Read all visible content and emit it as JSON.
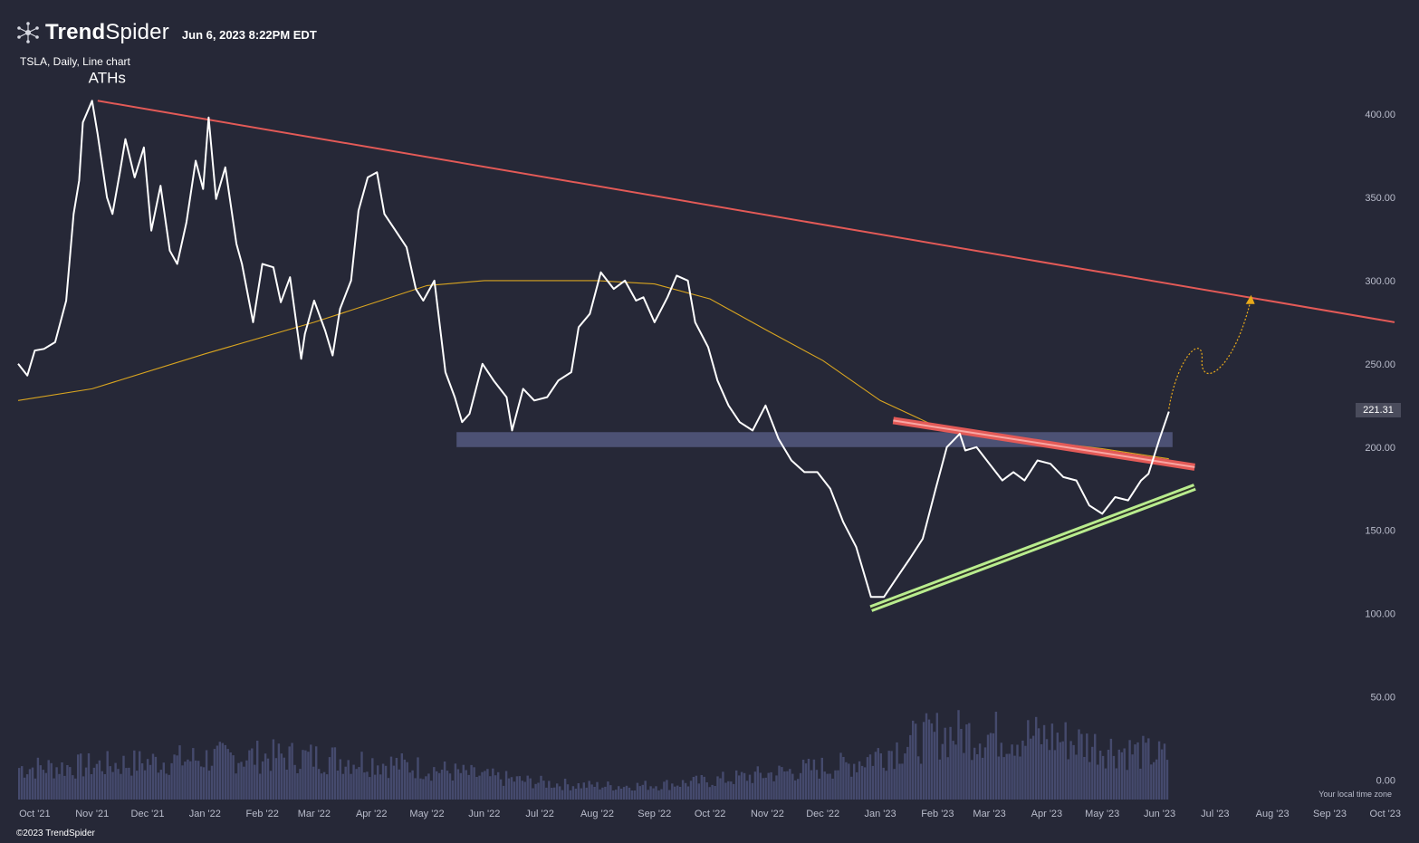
{
  "header": {
    "brand_bold": "Trend",
    "brand_regular": "Spider",
    "brand_icon": "spider-logo-icon",
    "timestamp": "Jun 6, 2023 8:22PM EDT",
    "subtitle": "TSLA, Daily, Line chart"
  },
  "footer": {
    "copyright": "©2023 TrendSpider",
    "timezone_note": "Your local time zone"
  },
  "colors": {
    "background": "#262837",
    "price_line": "#ffffff",
    "sma_line": "#d9a520",
    "resistance_line": "#e35a57",
    "support_line": "#b9ec8e",
    "zone": "#54587f",
    "volume": "#454a6d",
    "projection": "#e7a91a",
    "axis_text": "#b9bccb"
  },
  "chart_data": {
    "type": "line",
    "title": "TSLA, Daily, Line chart",
    "ylim": [
      -10,
      425
    ],
    "y_ticks": [
      "400.00",
      "350.00",
      "300.00",
      "250.00",
      "200.00",
      "150.00",
      "100.00",
      "50.00",
      "0.00"
    ],
    "x_ticks": [
      "Oct '21",
      "Nov '21",
      "Dec '21",
      "Jan '22",
      "Feb '22",
      "Mar '22",
      "Apr '22",
      "May '22",
      "Jun '22",
      "Jul '22",
      "Aug '22",
      "Sep '22",
      "Oct '22",
      "Nov '22",
      "Dec '22",
      "Jan '23",
      "Feb '23",
      "Mar '23",
      "Apr '23",
      "May '23",
      "Jun '23",
      "Jul '23",
      "Aug '23",
      "Sep '23",
      "Oct '23"
    ],
    "last_price": "221.31",
    "price": {
      "x": [
        "2021-09-22",
        "2021-09-27",
        "2021-10-01",
        "2021-10-06",
        "2021-10-12",
        "2021-10-18",
        "2021-10-22",
        "2021-10-25",
        "2021-10-27",
        "2021-11-01",
        "2021-11-04",
        "2021-11-09",
        "2021-11-12",
        "2021-11-16",
        "2021-11-19",
        "2021-11-24",
        "2021-11-29",
        "2021-12-03",
        "2021-12-08",
        "2021-12-13",
        "2021-12-17",
        "2021-12-22",
        "2021-12-27",
        "2021-12-31",
        "2022-01-03",
        "2022-01-07",
        "2022-01-12",
        "2022-01-18",
        "2022-01-21",
        "2022-01-27",
        "2022-02-01",
        "2022-02-07",
        "2022-02-11",
        "2022-02-16",
        "2022-02-22",
        "2022-02-24",
        "2022-03-01",
        "2022-03-07",
        "2022-03-11",
        "2022-03-15",
        "2022-03-21",
        "2022-03-25",
        "2022-03-30",
        "2022-04-04",
        "2022-04-08",
        "2022-04-14",
        "2022-04-20",
        "2022-04-25",
        "2022-04-29",
        "2022-05-05",
        "2022-05-11",
        "2022-05-16",
        "2022-05-20",
        "2022-05-24",
        "2022-05-31",
        "2022-06-06",
        "2022-06-13",
        "2022-06-16",
        "2022-06-22",
        "2022-06-28",
        "2022-07-05",
        "2022-07-11",
        "2022-07-18",
        "2022-07-22",
        "2022-07-28",
        "2022-08-03",
        "2022-08-10",
        "2022-08-16",
        "2022-08-22",
        "2022-08-26",
        "2022-09-01",
        "2022-09-08",
        "2022-09-13",
        "2022-09-19",
        "2022-09-23",
        "2022-09-30",
        "2022-10-05",
        "2022-10-11",
        "2022-10-17",
        "2022-10-24",
        "2022-10-31",
        "2022-11-07",
        "2022-11-14",
        "2022-11-21",
        "2022-11-28",
        "2022-12-05",
        "2022-12-12",
        "2022-12-19",
        "2022-12-27",
        "2023-01-03",
        "2023-01-09",
        "2023-01-17",
        "2023-01-24",
        "2023-01-31",
        "2023-02-06",
        "2023-02-13",
        "2023-02-16",
        "2023-02-22",
        "2023-03-01",
        "2023-03-08",
        "2023-03-14",
        "2023-03-20",
        "2023-03-27",
        "2023-04-03",
        "2023-04-10",
        "2023-04-17",
        "2023-04-24",
        "2023-05-01",
        "2023-05-08",
        "2023-05-15",
        "2023-05-22",
        "2023-05-26",
        "2023-06-01",
        "2023-06-06"
      ],
      "y": [
        250,
        243,
        258,
        259,
        263,
        288,
        340,
        360,
        395,
        408,
        388,
        350,
        340,
        365,
        385,
        362,
        380,
        330,
        357,
        318,
        310,
        335,
        372,
        355,
        398,
        349,
        368,
        322,
        310,
        275,
        310,
        308,
        287,
        302,
        253,
        268,
        288,
        270,
        255,
        283,
        300,
        342,
        362,
        365,
        340,
        330,
        320,
        295,
        288,
        300,
        245,
        230,
        215,
        220,
        250,
        240,
        230,
        210,
        235,
        228,
        230,
        240,
        245,
        272,
        280,
        305,
        295,
        300,
        288,
        290,
        275,
        290,
        303,
        300,
        275,
        260,
        240,
        225,
        215,
        210,
        225,
        205,
        192,
        185,
        185,
        175,
        155,
        140,
        110,
        110,
        120,
        133,
        145,
        175,
        200,
        208,
        198,
        200,
        190,
        180,
        185,
        180,
        192,
        190,
        182,
        180,
        165,
        160,
        170,
        168,
        180,
        184,
        205,
        221.31
      ]
    },
    "sma": {
      "x": [
        "2021-09-22",
        "2021-11-01",
        "2022-01-01",
        "2022-03-01",
        "2022-05-01",
        "2022-06-01",
        "2022-07-01",
        "2022-08-01",
        "2022-09-01",
        "2022-10-01",
        "2022-11-01",
        "2022-12-01",
        "2023-01-01",
        "2023-02-01",
        "2023-03-01",
        "2023-04-01",
        "2023-05-01",
        "2023-06-06"
      ],
      "y": [
        228,
        235,
        256,
        275,
        297,
        300,
        300,
        300,
        298,
        289,
        270,
        252,
        228,
        212,
        207,
        203,
        199,
        193
      ]
    },
    "resistance_line": {
      "x": [
        "2021-11-04",
        "2023-10-06"
      ],
      "y": [
        408,
        275
      ]
    },
    "support_line": {
      "x": [
        "2022-12-27",
        "2023-06-20"
      ],
      "y": [
        103,
        176
      ]
    },
    "wedge_top_line": {
      "x": [
        "2023-01-08",
        "2023-06-20"
      ],
      "y": [
        216,
        188
      ]
    },
    "horizontal_zone": {
      "x": [
        "2022-05-17",
        "2023-06-08"
      ],
      "y": [
        200,
        209
      ]
    },
    "projection": {
      "x": [
        "2023-06-06",
        "2023-06-20",
        "2023-07-05",
        "2023-07-20"
      ],
      "y": [
        223,
        255,
        251,
        287
      ]
    },
    "volume": {
      "ymax": 100
    },
    "annotations": [
      {
        "text": "ATHs",
        "x": "2021-10-30",
        "y": 422
      }
    ]
  }
}
